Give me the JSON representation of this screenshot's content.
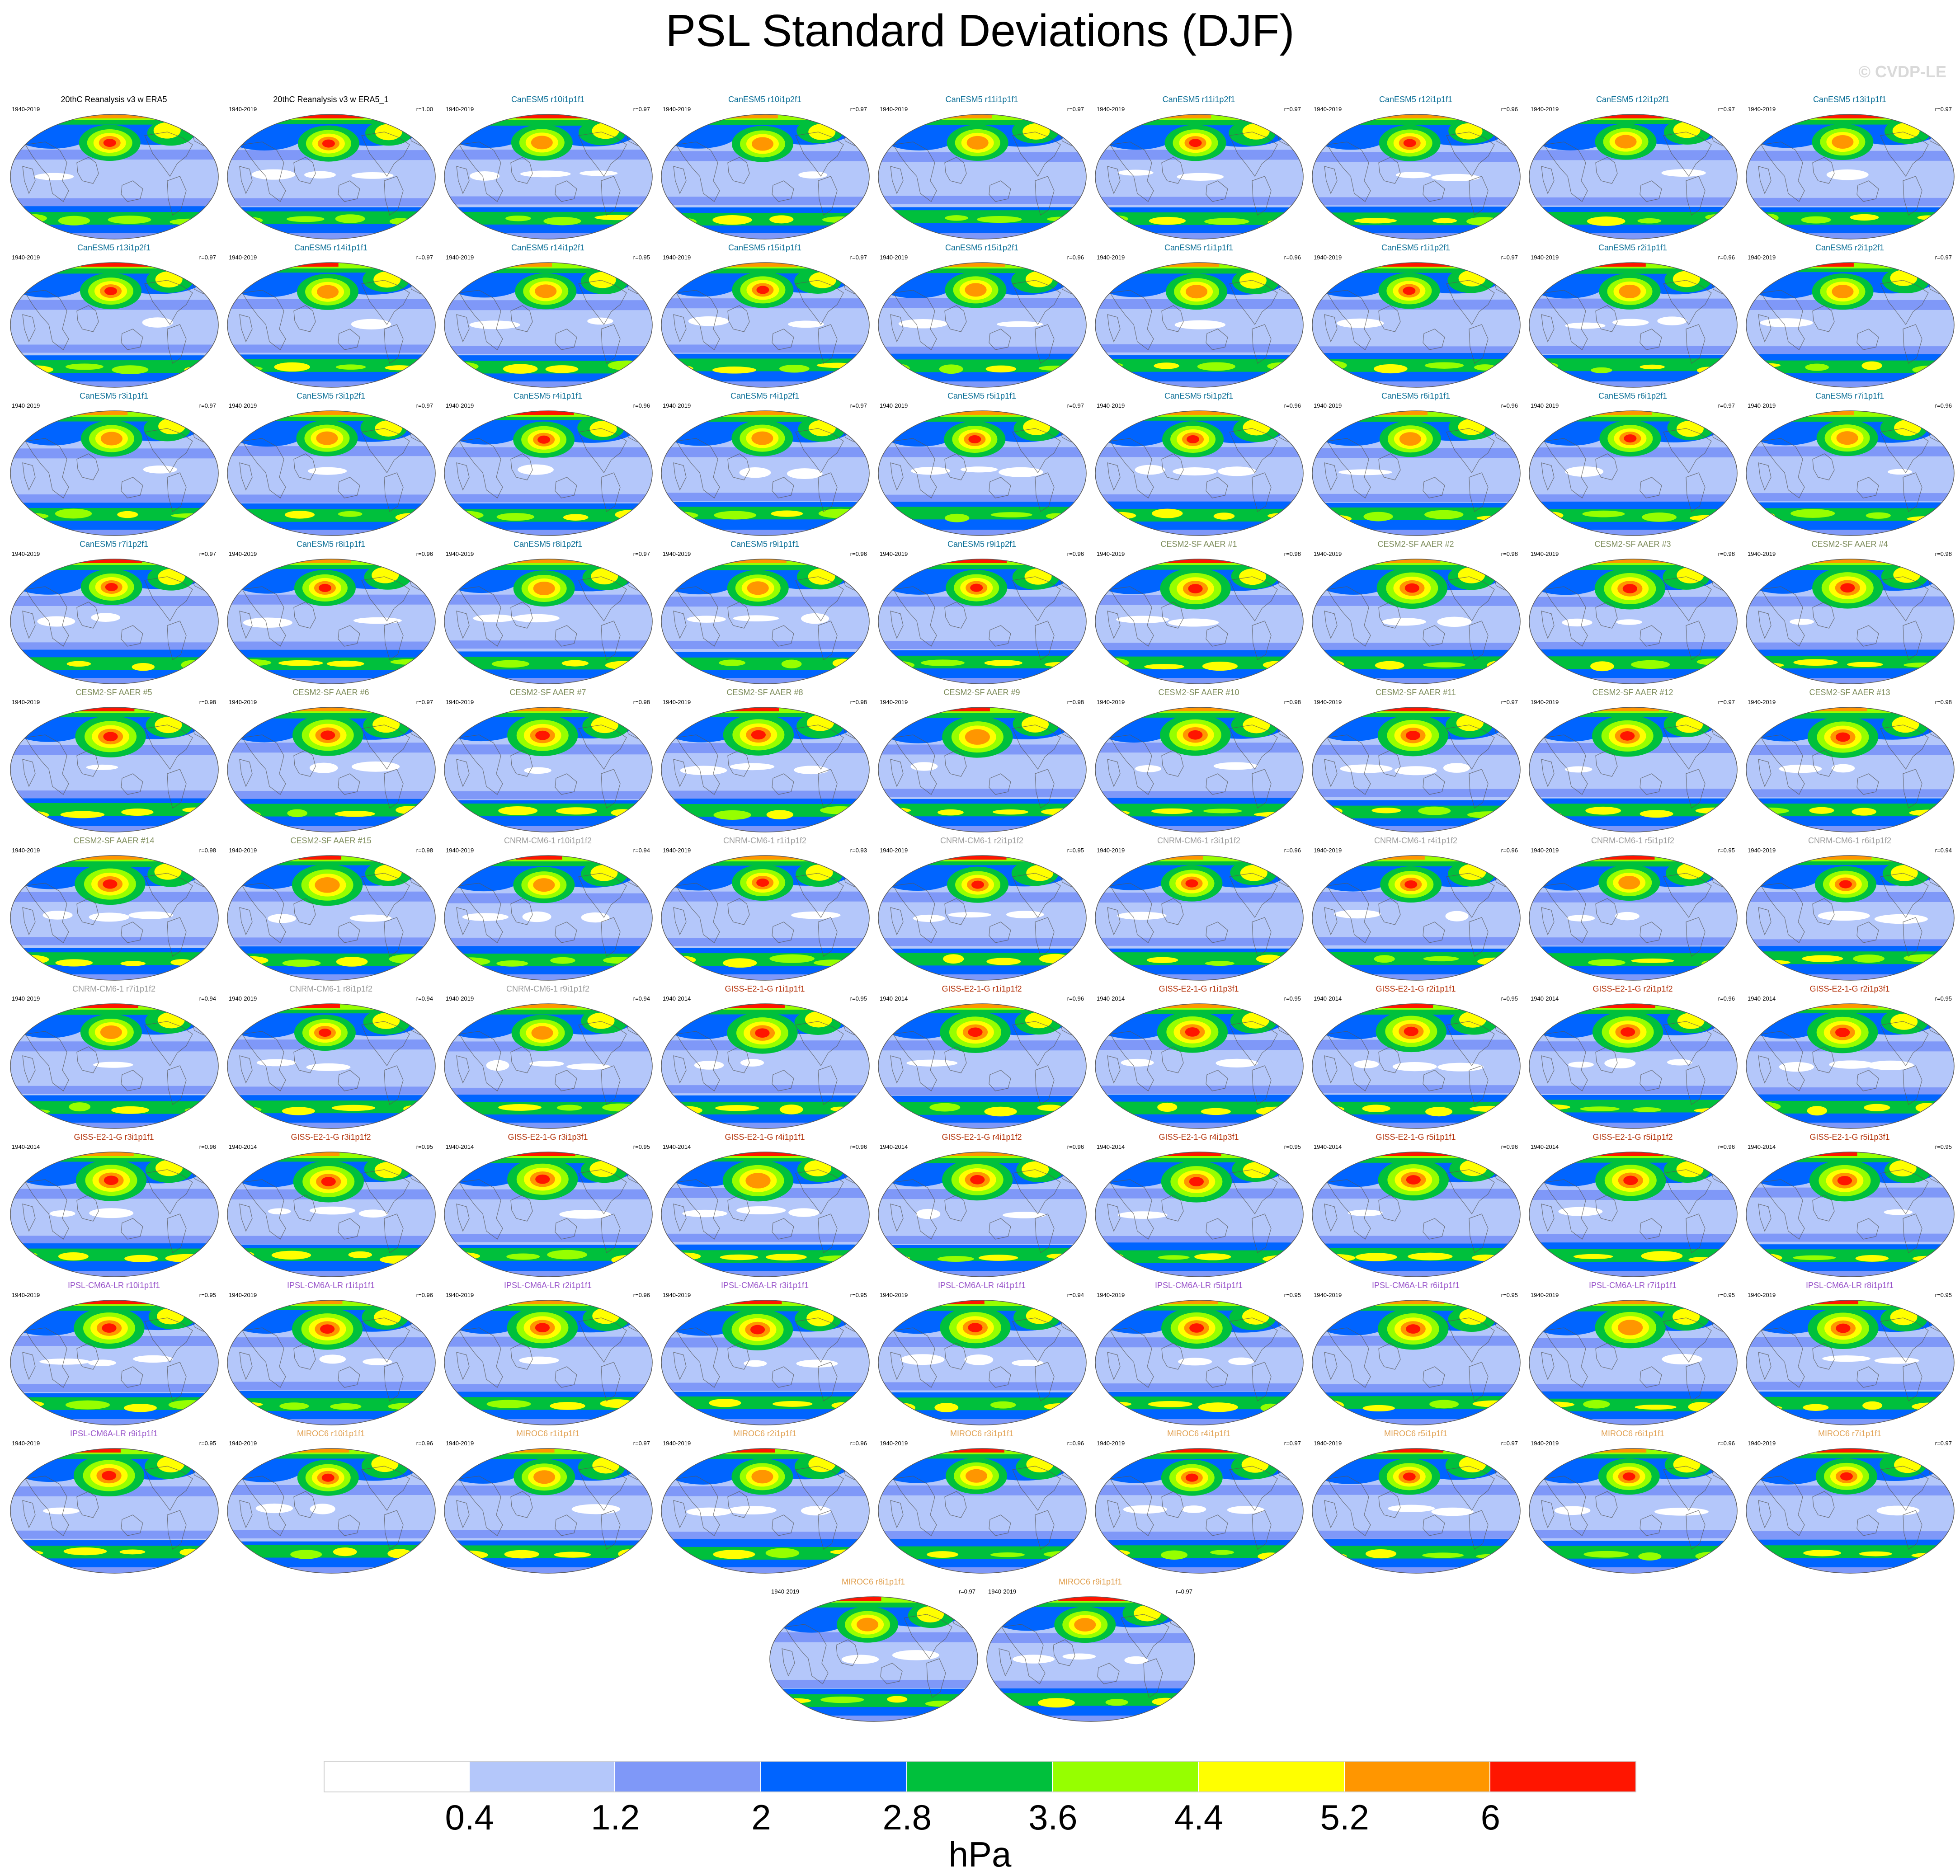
{
  "title": "PSL Standard Deviations (DJF)",
  "watermark": "© CVDP-LE",
  "colorbar": {
    "units": "hPa",
    "ticks": [
      "0.4",
      "1.2",
      "2",
      "2.8",
      "3.6",
      "4.4",
      "5.2",
      "6"
    ],
    "colors": [
      "#ffffff",
      "#b4c7fa",
      "#7f98f8",
      "#0064ff",
      "#00c03c",
      "#96ff00",
      "#ffff00",
      "#ff9600",
      "#ff1500"
    ]
  },
  "groups": [
    {
      "key": "obs",
      "color": "#000000"
    },
    {
      "key": "CanESM5",
      "color": "#0a6e96"
    },
    {
      "key": "CESM2-SF AAER",
      "color": "#7d8c5a"
    },
    {
      "key": "CNRM-CM6-1",
      "color": "#9b9b9b"
    },
    {
      "key": "GISS-E2-1-G",
      "color": "#b4320a"
    },
    {
      "key": "IPSL-CM6A-LR",
      "color": "#9650c8"
    },
    {
      "key": "MIROC6",
      "color": "#e1a050"
    }
  ],
  "panels": [
    {
      "name": "20thC Reanalysis v3 w ERA5",
      "years": "1940-2019",
      "r": "",
      "group": 0
    },
    {
      "name": "20thC Reanalysis v3 w ERA5_1",
      "years": "1940-2019",
      "r": "r=1.00",
      "group": 0
    },
    {
      "name": "CanESM5 r10i1p1f1",
      "years": "1940-2019",
      "r": "r=0.97",
      "group": 1
    },
    {
      "name": "CanESM5 r10i1p2f1",
      "years": "1940-2019",
      "r": "r=0.97",
      "group": 1
    },
    {
      "name": "CanESM5 r11i1p1f1",
      "years": "1940-2019",
      "r": "r=0.97",
      "group": 1
    },
    {
      "name": "CanESM5 r11i1p2f1",
      "years": "1940-2019",
      "r": "r=0.97",
      "group": 1
    },
    {
      "name": "CanESM5 r12i1p1f1",
      "years": "1940-2019",
      "r": "r=0.96",
      "group": 1
    },
    {
      "name": "CanESM5 r12i1p2f1",
      "years": "1940-2019",
      "r": "r=0.97",
      "group": 1
    },
    {
      "name": "CanESM5 r13i1p1f1",
      "years": "1940-2019",
      "r": "r=0.97",
      "group": 1
    },
    {
      "name": "CanESM5 r13i1p2f1",
      "years": "1940-2019",
      "r": "r=0.97",
      "group": 1
    },
    {
      "name": "CanESM5 r14i1p1f1",
      "years": "1940-2019",
      "r": "r=0.97",
      "group": 1
    },
    {
      "name": "CanESM5 r14i1p2f1",
      "years": "1940-2019",
      "r": "r=0.95",
      "group": 1
    },
    {
      "name": "CanESM5 r15i1p1f1",
      "years": "1940-2019",
      "r": "r=0.97",
      "group": 1
    },
    {
      "name": "CanESM5 r15i1p2f1",
      "years": "1940-2019",
      "r": "r=0.96",
      "group": 1
    },
    {
      "name": "CanESM5 r1i1p1f1",
      "years": "1940-2019",
      "r": "r=0.96",
      "group": 1
    },
    {
      "name": "CanESM5 r1i1p2f1",
      "years": "1940-2019",
      "r": "r=0.97",
      "group": 1
    },
    {
      "name": "CanESM5 r2i1p1f1",
      "years": "1940-2019",
      "r": "r=0.96",
      "group": 1
    },
    {
      "name": "CanESM5 r2i1p2f1",
      "years": "1940-2019",
      "r": "r=0.97",
      "group": 1
    },
    {
      "name": "CanESM5 r3i1p1f1",
      "years": "1940-2019",
      "r": "r=0.97",
      "group": 1
    },
    {
      "name": "CanESM5 r3i1p2f1",
      "years": "1940-2019",
      "r": "r=0.97",
      "group": 1
    },
    {
      "name": "CanESM5 r4i1p1f1",
      "years": "1940-2019",
      "r": "r=0.96",
      "group": 1
    },
    {
      "name": "CanESM5 r4i1p2f1",
      "years": "1940-2019",
      "r": "r=0.97",
      "group": 1
    },
    {
      "name": "CanESM5 r5i1p1f1",
      "years": "1940-2019",
      "r": "r=0.97",
      "group": 1
    },
    {
      "name": "CanESM5 r5i1p2f1",
      "years": "1940-2019",
      "r": "r=0.96",
      "group": 1
    },
    {
      "name": "CanESM5 r6i1p1f1",
      "years": "1940-2019",
      "r": "r=0.96",
      "group": 1
    },
    {
      "name": "CanESM5 r6i1p2f1",
      "years": "1940-2019",
      "r": "r=0.97",
      "group": 1
    },
    {
      "name": "CanESM5 r7i1p1f1",
      "years": "1940-2019",
      "r": "r=0.96",
      "group": 1
    },
    {
      "name": "CanESM5 r7i1p2f1",
      "years": "1940-2019",
      "r": "r=0.97",
      "group": 1
    },
    {
      "name": "CanESM5 r8i1p1f1",
      "years": "1940-2019",
      "r": "r=0.96",
      "group": 1
    },
    {
      "name": "CanESM5 r8i1p2f1",
      "years": "1940-2019",
      "r": "r=0.97",
      "group": 1
    },
    {
      "name": "CanESM5 r9i1p1f1",
      "years": "1940-2019",
      "r": "r=0.96",
      "group": 1
    },
    {
      "name": "CanESM5 r9i1p2f1",
      "years": "1940-2019",
      "r": "r=0.96",
      "group": 1
    },
    {
      "name": "CESM2-SF AAER #1",
      "years": "1940-2019",
      "r": "r=0.98",
      "group": 2
    },
    {
      "name": "CESM2-SF AAER #2",
      "years": "1940-2019",
      "r": "r=0.98",
      "group": 2
    },
    {
      "name": "CESM2-SF AAER #3",
      "years": "1940-2019",
      "r": "r=0.98",
      "group": 2
    },
    {
      "name": "CESM2-SF AAER #4",
      "years": "1940-2019",
      "r": "r=0.98",
      "group": 2
    },
    {
      "name": "CESM2-SF AAER #5",
      "years": "1940-2019",
      "r": "r=0.98",
      "group": 2
    },
    {
      "name": "CESM2-SF AAER #6",
      "years": "1940-2019",
      "r": "r=0.97",
      "group": 2
    },
    {
      "name": "CESM2-SF AAER #7",
      "years": "1940-2019",
      "r": "r=0.98",
      "group": 2
    },
    {
      "name": "CESM2-SF AAER #8",
      "years": "1940-2019",
      "r": "r=0.98",
      "group": 2
    },
    {
      "name": "CESM2-SF AAER #9",
      "years": "1940-2019",
      "r": "r=0.98",
      "group": 2
    },
    {
      "name": "CESM2-SF AAER #10",
      "years": "1940-2019",
      "r": "r=0.98",
      "group": 2
    },
    {
      "name": "CESM2-SF AAER #11",
      "years": "1940-2019",
      "r": "r=0.97",
      "group": 2
    },
    {
      "name": "CESM2-SF AAER #12",
      "years": "1940-2019",
      "r": "r=0.97",
      "group": 2
    },
    {
      "name": "CESM2-SF AAER #13",
      "years": "1940-2019",
      "r": "r=0.98",
      "group": 2
    },
    {
      "name": "CESM2-SF AAER #14",
      "years": "1940-2019",
      "r": "r=0.98",
      "group": 2
    },
    {
      "name": "CESM2-SF AAER #15",
      "years": "1940-2019",
      "r": "r=0.98",
      "group": 2
    },
    {
      "name": "CNRM-CM6-1 r10i1p1f2",
      "years": "1940-2019",
      "r": "r=0.94",
      "group": 3
    },
    {
      "name": "CNRM-CM6-1 r1i1p1f2",
      "years": "1940-2019",
      "r": "r=0.93",
      "group": 3
    },
    {
      "name": "CNRM-CM6-1 r2i1p1f2",
      "years": "1940-2019",
      "r": "r=0.95",
      "group": 3
    },
    {
      "name": "CNRM-CM6-1 r3i1p1f2",
      "years": "1940-2019",
      "r": "r=0.96",
      "group": 3
    },
    {
      "name": "CNRM-CM6-1 r4i1p1f2",
      "years": "1940-2019",
      "r": "r=0.96",
      "group": 3
    },
    {
      "name": "CNRM-CM6-1 r5i1p1f2",
      "years": "1940-2019",
      "r": "r=0.95",
      "group": 3
    },
    {
      "name": "CNRM-CM6-1 r6i1p1f2",
      "years": "1940-2019",
      "r": "r=0.94",
      "group": 3
    },
    {
      "name": "CNRM-CM6-1 r7i1p1f2",
      "years": "1940-2019",
      "r": "r=0.94",
      "group": 3
    },
    {
      "name": "CNRM-CM6-1 r8i1p1f2",
      "years": "1940-2019",
      "r": "r=0.94",
      "group": 3
    },
    {
      "name": "CNRM-CM6-1 r9i1p1f2",
      "years": "1940-2019",
      "r": "r=0.94",
      "group": 3
    },
    {
      "name": "GISS-E2-1-G r1i1p1f1",
      "years": "1940-2014",
      "r": "r=0.95",
      "group": 4
    },
    {
      "name": "GISS-E2-1-G r1i1p1f2",
      "years": "1940-2014",
      "r": "r=0.96",
      "group": 4
    },
    {
      "name": "GISS-E2-1-G r1i1p3f1",
      "years": "1940-2014",
      "r": "r=0.95",
      "group": 4
    },
    {
      "name": "GISS-E2-1-G r2i1p1f1",
      "years": "1940-2014",
      "r": "r=0.95",
      "group": 4
    },
    {
      "name": "GISS-E2-1-G r2i1p1f2",
      "years": "1940-2014",
      "r": "r=0.96",
      "group": 4
    },
    {
      "name": "GISS-E2-1-G r2i1p3f1",
      "years": "1940-2014",
      "r": "r=0.95",
      "group": 4
    },
    {
      "name": "GISS-E2-1-G r3i1p1f1",
      "years": "1940-2014",
      "r": "r=0.96",
      "group": 4
    },
    {
      "name": "GISS-E2-1-G r3i1p1f2",
      "years": "1940-2014",
      "r": "r=0.95",
      "group": 4
    },
    {
      "name": "GISS-E2-1-G r3i1p3f1",
      "years": "1940-2014",
      "r": "r=0.95",
      "group": 4
    },
    {
      "name": "GISS-E2-1-G r4i1p1f1",
      "years": "1940-2014",
      "r": "r=0.96",
      "group": 4
    },
    {
      "name": "GISS-E2-1-G r4i1p1f2",
      "years": "1940-2014",
      "r": "r=0.96",
      "group": 4
    },
    {
      "name": "GISS-E2-1-G r4i1p3f1",
      "years": "1940-2014",
      "r": "r=0.95",
      "group": 4
    },
    {
      "name": "GISS-E2-1-G r5i1p1f1",
      "years": "1940-2014",
      "r": "r=0.96",
      "group": 4
    },
    {
      "name": "GISS-E2-1-G r5i1p1f2",
      "years": "1940-2014",
      "r": "r=0.96",
      "group": 4
    },
    {
      "name": "GISS-E2-1-G r5i1p3f1",
      "years": "1940-2014",
      "r": "r=0.95",
      "group": 4
    },
    {
      "name": "IPSL-CM6A-LR r10i1p1f1",
      "years": "1940-2019",
      "r": "r=0.95",
      "group": 5
    },
    {
      "name": "IPSL-CM6A-LR r1i1p1f1",
      "years": "1940-2019",
      "r": "r=0.96",
      "group": 5
    },
    {
      "name": "IPSL-CM6A-LR r2i1p1f1",
      "years": "1940-2019",
      "r": "r=0.96",
      "group": 5
    },
    {
      "name": "IPSL-CM6A-LR r3i1p1f1",
      "years": "1940-2019",
      "r": "r=0.95",
      "group": 5
    },
    {
      "name": "IPSL-CM6A-LR r4i1p1f1",
      "years": "1940-2019",
      "r": "r=0.94",
      "group": 5
    },
    {
      "name": "IPSL-CM6A-LR r5i1p1f1",
      "years": "1940-2019",
      "r": "r=0.95",
      "group": 5
    },
    {
      "name": "IPSL-CM6A-LR r6i1p1f1",
      "years": "1940-2019",
      "r": "r=0.95",
      "group": 5
    },
    {
      "name": "IPSL-CM6A-LR r7i1p1f1",
      "years": "1940-2019",
      "r": "r=0.95",
      "group": 5
    },
    {
      "name": "IPSL-CM6A-LR r8i1p1f1",
      "years": "1940-2019",
      "r": "r=0.95",
      "group": 5
    },
    {
      "name": "IPSL-CM6A-LR r9i1p1f1",
      "years": "1940-2019",
      "r": "r=0.95",
      "group": 5
    },
    {
      "name": "MIROC6 r10i1p1f1",
      "years": "1940-2019",
      "r": "r=0.96",
      "group": 6
    },
    {
      "name": "MIROC6 r1i1p1f1",
      "years": "1940-2019",
      "r": "r=0.97",
      "group": 6
    },
    {
      "name": "MIROC6 r2i1p1f1",
      "years": "1940-2019",
      "r": "r=0.96",
      "group": 6
    },
    {
      "name": "MIROC6 r3i1p1f1",
      "years": "1940-2019",
      "r": "r=0.96",
      "group": 6
    },
    {
      "name": "MIROC6 r4i1p1f1",
      "years": "1940-2019",
      "r": "r=0.97",
      "group": 6
    },
    {
      "name": "MIROC6 r5i1p1f1",
      "years": "1940-2019",
      "r": "r=0.97",
      "group": 6
    },
    {
      "name": "MIROC6 r6i1p1f1",
      "years": "1940-2019",
      "r": "r=0.96",
      "group": 6
    },
    {
      "name": "MIROC6 r7i1p1f1",
      "years": "1940-2019",
      "r": "r=0.97",
      "group": 6
    },
    {
      "name": "MIROC6 r8i1p1f1",
      "years": "1940-2019",
      "r": "r=0.97",
      "group": 6
    },
    {
      "name": "MIROC6 r9i1p1f1",
      "years": "1940-2019",
      "r": "r=0.97",
      "group": 6
    }
  ],
  "chart_data": {
    "type": "heatmap",
    "title": "PSL Standard Deviations (DJF)",
    "variable": "PSL",
    "season": "DJF",
    "units": "hPa",
    "contour_levels": [
      0.4,
      1.2,
      2,
      2.8,
      3.6,
      4.4,
      5.2,
      6
    ],
    "panel_count": 92,
    "reference": "20thC Reanalysis v3 w ERA5",
    "periods": [
      "1940-2019",
      "1940-2014"
    ]
  }
}
